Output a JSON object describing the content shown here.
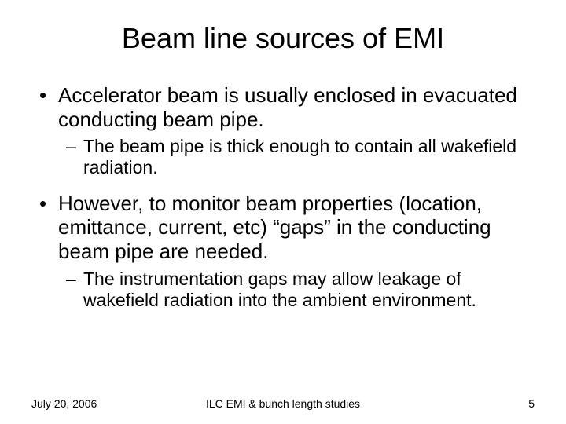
{
  "title": "Beam line sources of EMI",
  "bullets": [
    {
      "level": 1,
      "mark": "•",
      "text": "Accelerator beam is usually enclosed in evacuated conducting beam pipe."
    },
    {
      "level": 2,
      "mark": "–",
      "text": "The beam pipe is thick enough to contain all wakefield radiation."
    },
    {
      "level": 1,
      "mark": "•",
      "text": "However, to monitor beam properties (location, emittance, current, etc) “gaps” in the conducting beam pipe are needed."
    },
    {
      "level": 2,
      "mark": "–",
      "text": "The instrumentation gaps may allow leakage of wakefield radiation into the ambient environment."
    }
  ],
  "footer": {
    "date": "July 20, 2006",
    "center": "ILC EMI & bunch length studies",
    "page": "5"
  },
  "style": {
    "background_color": "#ffffff",
    "text_color": "#000000",
    "title_fontsize": 36,
    "body_fontsize": 26,
    "sub_fontsize": 23,
    "footer_fontsize": 14
  }
}
